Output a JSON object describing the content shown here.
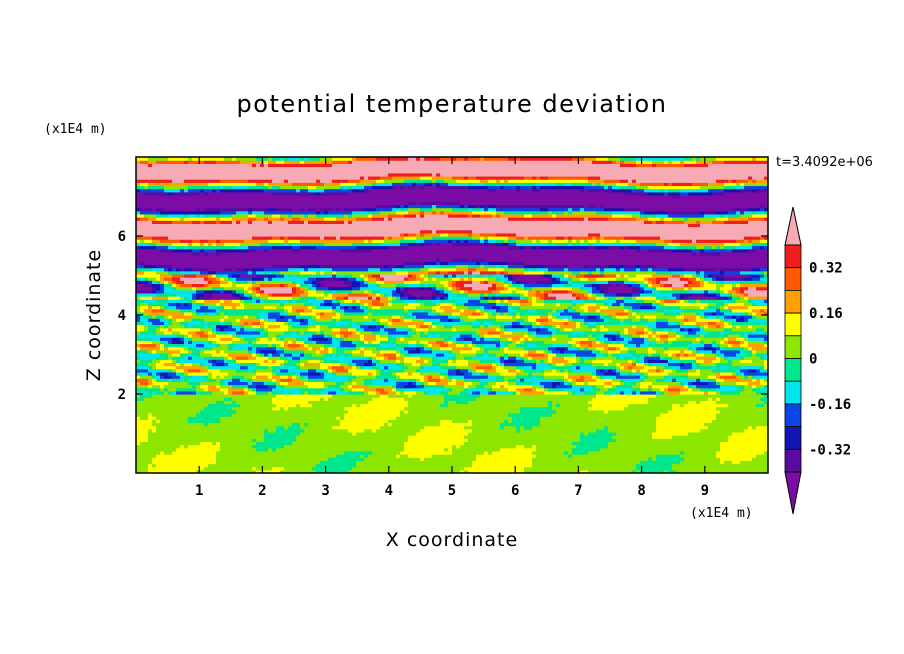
{
  "chart_data": {
    "type": "heatmap",
    "title": "potential temperature deviation",
    "xlabel": "X coordinate",
    "ylabel": "Z coordinate",
    "x_unit": "(x1E4 m)",
    "y_unit": "(x1E4 m)",
    "time_label": "t=3.4092e+06",
    "xlim": [
      0,
      10
    ],
    "ylim": [
      0,
      8
    ],
    "x_ticks": [
      1,
      2,
      3,
      4,
      5,
      6,
      7,
      8,
      9
    ],
    "y_ticks": [
      2,
      4,
      6
    ],
    "colorbar": {
      "levels": [
        -0.4,
        -0.32,
        -0.24,
        -0.16,
        -0.08,
        0,
        0.08,
        0.16,
        0.24,
        0.32,
        0.4
      ],
      "labeled_levels": [
        "0.32",
        "0.16",
        "0",
        "-0.16",
        "-0.32"
      ],
      "colors": [
        "#7b0ca6",
        "#5a0aa0",
        "#1414b4",
        "#0a46e6",
        "#00e6f0",
        "#00e68c",
        "#8ce600",
        "#ffff00",
        "#ffa000",
        "#ff5a00",
        "#f01e1e",
        "#f5aab4"
      ],
      "extend": "both"
    },
    "layers": [
      {
        "z_range": [
          6.5,
          8.0
        ],
        "description_class": 11,
        "alt_class": 0
      },
      {
        "z_range": [
          5.0,
          6.5
        ],
        "description_class": 0,
        "alt_class": 11
      },
      {
        "z_range": [
          4.4,
          5.0
        ],
        "description_class": 8,
        "alt_class": 3
      },
      {
        "z_range": [
          3.0,
          4.4
        ],
        "description_class": 6,
        "alt_class": 4
      },
      {
        "z_range": [
          2.0,
          3.0
        ],
        "description_class": 5,
        "alt_class": 7
      },
      {
        "z_range": [
          0.0,
          2.0
        ],
        "description_class": 6,
        "alt_class": 5
      }
    ]
  }
}
